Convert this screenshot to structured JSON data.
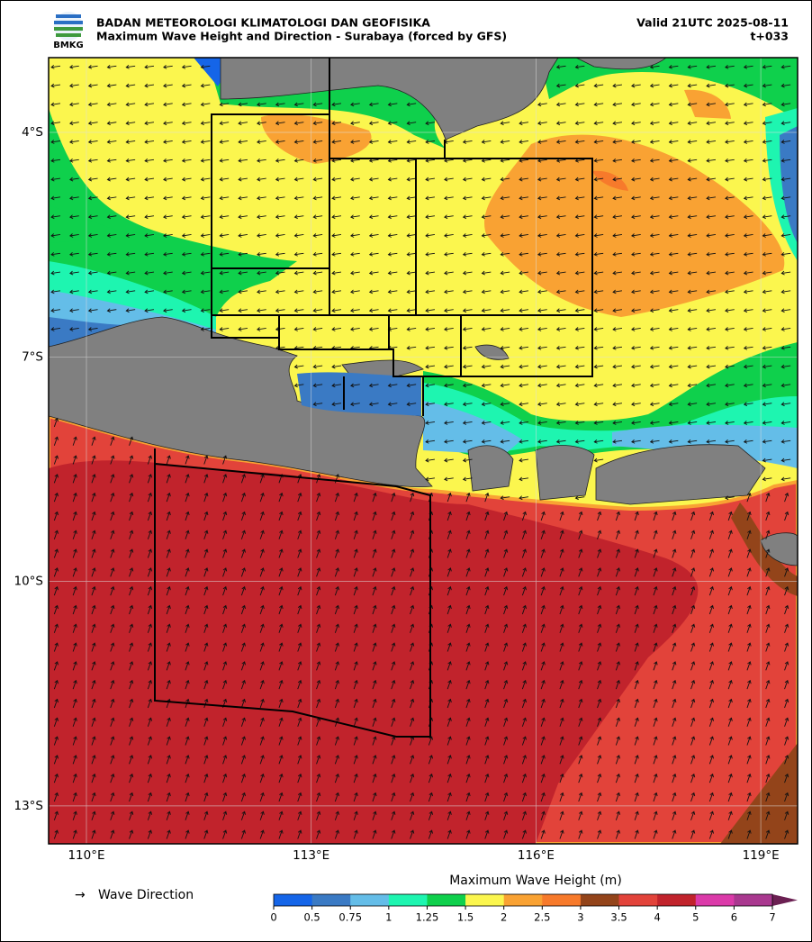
{
  "header": {
    "logo_text": "BMKG",
    "agency": "BADAN METEOROLOGI KLIMATOLOGI DAN GEOFISIKA",
    "title": "Maximum Wave Height and Direction - Surabaya (forced by GFS)",
    "valid": "Valid 21UTC 2025-08-11",
    "step": "t+033"
  },
  "map": {
    "lat_ticks": [
      "4°S",
      "7°S",
      "10°S",
      "13°S"
    ],
    "lon_ticks": [
      "110°E",
      "113°E",
      "116°E",
      "119°E"
    ]
  },
  "legend": {
    "arrow_symbol": "→",
    "label": "Wave Direction"
  },
  "colorbar": {
    "title": "Maximum Wave Height (m)",
    "ticks": [
      0,
      0.5,
      0.75,
      1,
      1.25,
      1.5,
      2,
      2.5,
      3,
      3.5,
      4,
      5,
      6,
      7
    ],
    "colors": [
      "#1565e8",
      "#3a7ac4",
      "#64bde8",
      "#1ef5b0",
      "#0fd04c",
      "#fbf64e",
      "#f9a233",
      "#f77a2b",
      "#93441a",
      "#e2433a",
      "#c1232c",
      "#db3aa9",
      "#a9388f"
    ],
    "extend_color": "#6b2052"
  }
}
